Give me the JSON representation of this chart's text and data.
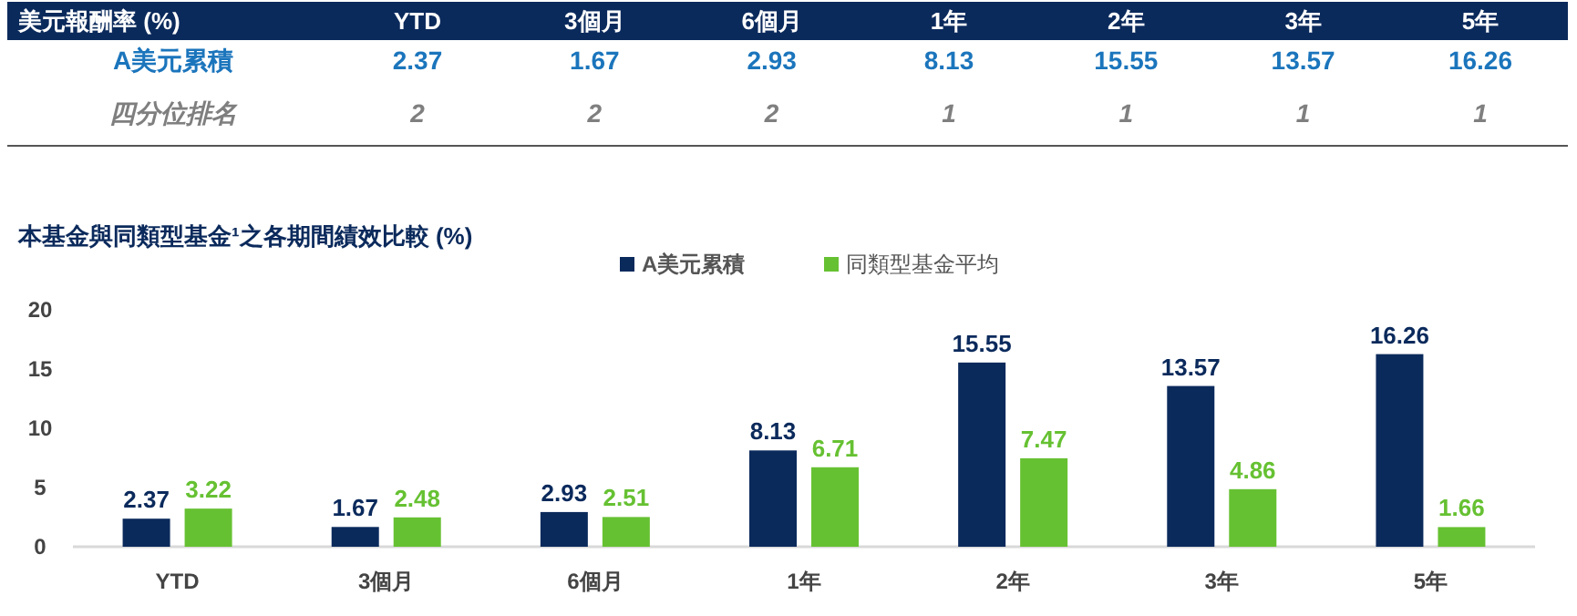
{
  "chart_data": [
    {
      "type": "other",
      "title": "美元報酬率 (%)",
      "categories": [
        "YTD",
        "3個月",
        "6個月",
        "1年",
        "2年",
        "3年",
        "5年"
      ],
      "y_categories": [
        "A美元累積",
        "四分位排名"
      ],
      "cell_labels": [
        [
          "2.37",
          "1.67",
          "2.93",
          "8.13",
          "15.55",
          "13.57",
          "16.26"
        ],
        [
          "2",
          "2",
          "2",
          "1",
          "1",
          "1",
          "1"
        ]
      ]
    },
    {
      "type": "bar",
      "title": "本基金與同類型基金¹之各期間績效比較 (%)",
      "categories": [
        "YTD",
        "3個月",
        "6個月",
        "1年",
        "2年",
        "3年",
        "5年"
      ],
      "series": [
        {
          "name": "A美元累積",
          "color": "#0b2a5c",
          "values": [
            2.37,
            1.67,
            2.93,
            8.13,
            15.55,
            13.57,
            16.26
          ]
        },
        {
          "name": "同類型基金平均",
          "color": "#66c132",
          "values": [
            3.22,
            2.48,
            2.51,
            6.71,
            7.47,
            4.86,
            1.66
          ]
        }
      ],
      "ylim": [
        0,
        20
      ],
      "yticks": [
        0,
        5,
        10,
        15,
        20
      ],
      "grid": false,
      "legend": "top",
      "data_labels": true
    }
  ]
}
